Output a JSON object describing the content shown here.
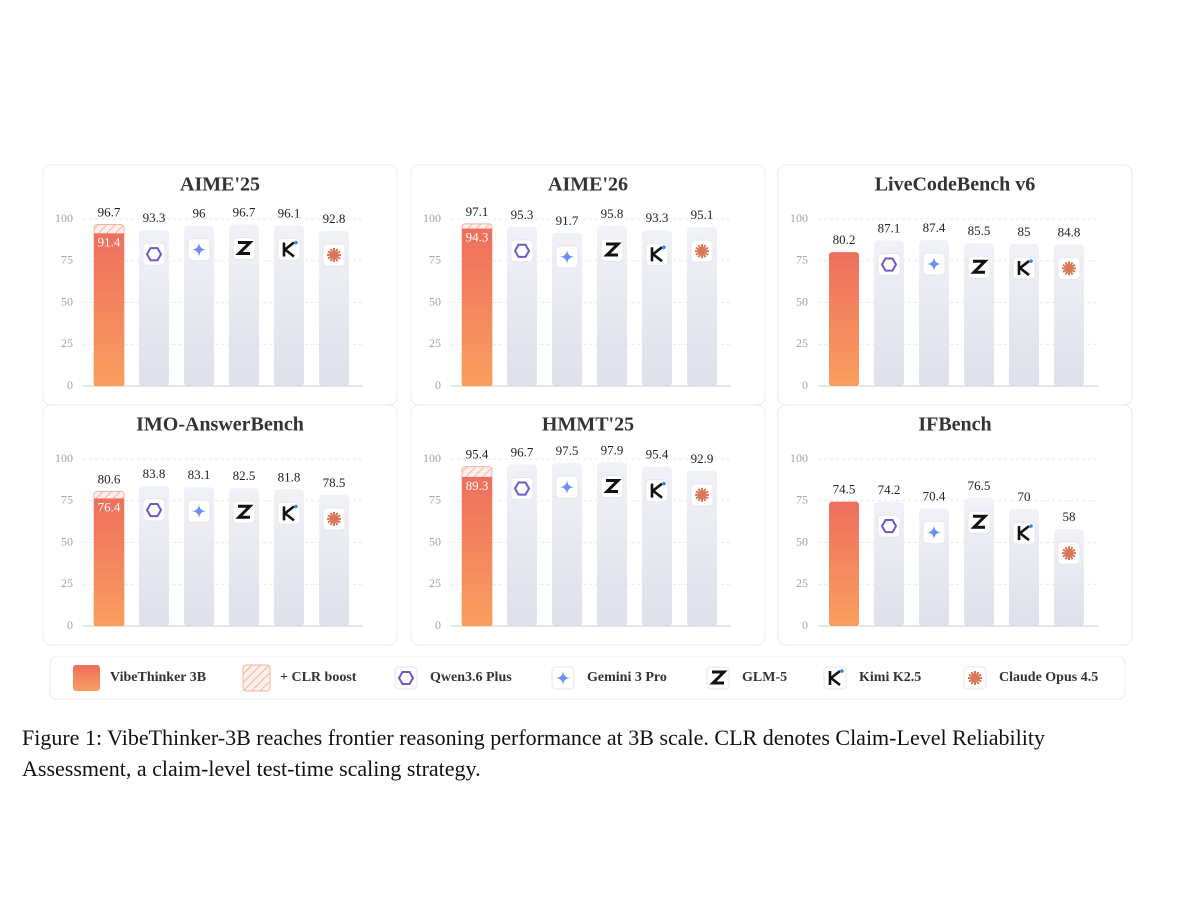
{
  "chart_data": [
    {
      "type": "bar",
      "title": "AIME'25",
      "values": [
        96.7,
        93.3,
        96.0,
        96.7,
        96.1,
        92.8
      ],
      "clr_base": 91.4,
      "ylim": [
        0,
        100
      ],
      "yticks": [
        0,
        25,
        50,
        75,
        100
      ]
    },
    {
      "type": "bar",
      "title": "AIME'26",
      "values": [
        97.1,
        95.3,
        91.7,
        95.8,
        93.3,
        95.1
      ],
      "clr_base": 94.3,
      "ylim": [
        0,
        100
      ],
      "yticks": [
        0,
        25,
        50,
        75,
        100
      ]
    },
    {
      "type": "bar",
      "title": "LiveCodeBench v6",
      "values": [
        80.2,
        87.1,
        87.4,
        85.5,
        85.0,
        84.8
      ],
      "ylim": [
        0,
        100
      ],
      "yticks": [
        0,
        25,
        50,
        75,
        100
      ]
    },
    {
      "type": "bar",
      "title": "IMO-AnswerBench",
      "values": [
        80.6,
        83.8,
        83.1,
        82.5,
        81.8,
        78.5
      ],
      "clr_base": 76.4,
      "ylim": [
        0,
        100
      ],
      "yticks": [
        0,
        25,
        50,
        75,
        100
      ]
    },
    {
      "type": "bar",
      "title": "HMMT'25",
      "values": [
        95.4,
        96.7,
        97.5,
        97.9,
        95.4,
        92.9
      ],
      "clr_base": 89.3,
      "ylim": [
        0,
        100
      ],
      "yticks": [
        0,
        25,
        50,
        75,
        100
      ]
    },
    {
      "type": "bar",
      "title": "IFBench",
      "values": [
        74.5,
        74.2,
        70.4,
        76.5,
        70.0,
        58.0
      ],
      "ylim": [
        0,
        100
      ],
      "yticks": [
        0,
        25,
        50,
        75,
        100
      ]
    }
  ],
  "legend": {
    "items": [
      "VibeThinker 3B",
      "+ CLR boost",
      "Qwen3.6 Plus",
      "Gemini 3 Pro",
      "GLM-5",
      "Kimi K2.5",
      "Claude Opus 4.5"
    ]
  },
  "caption": {
    "lines": [
      "Figure 1: VibeThinker-3B reaches frontier reasoning performance at 3B scale. CLR denotes Claim-Level Reliability",
      "Assessment, a claim-level test-time scaling strategy."
    ]
  }
}
